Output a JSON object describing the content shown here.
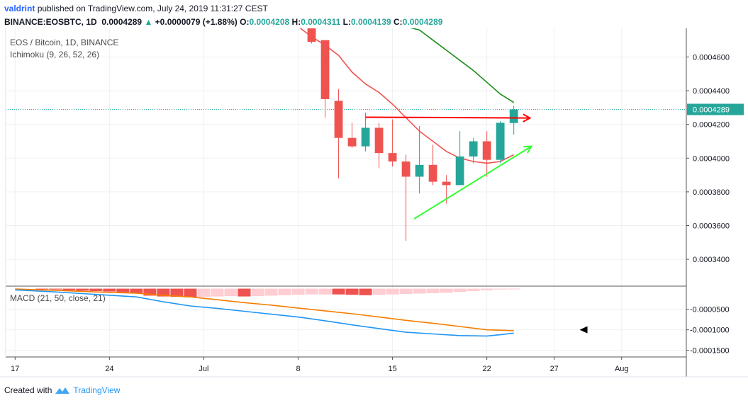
{
  "header": {
    "author": "valdrint",
    "published": "published on TradingView.com, July 24, 2019 11:31:27 CEST",
    "symbol": "BINANCE:EOSBTC, 1D",
    "last": "0.0004289",
    "change_arrow": "▲",
    "change": "+0.0000079 (+1.88%)",
    "o_label": "O:",
    "o": "0.0004208",
    "h_label": "H:",
    "h": "0.0004311",
    "l_label": "L:",
    "l": "0.0004139",
    "c_label": "C:",
    "c": "0.0004289"
  },
  "footer": {
    "created_with": "Created with",
    "brand": "TradingView",
    "logo_icon": "tradingview-logo-icon"
  },
  "chart_data": {
    "type": "candlestick",
    "legend": [
      "EOS / Bitcoin, 1D, BINANCE",
      "Ichimoku (9, 26, 52, 26)"
    ],
    "x_ticks": [
      "17",
      "24",
      "Jul",
      "8",
      "15",
      "22",
      "27",
      "Aug"
    ],
    "x_tick_days": [
      -14,
      -7,
      0,
      7,
      14,
      21,
      26,
      31
    ],
    "x_range_days": [
      -14.7,
      35.8
    ],
    "y_ticks": [
      "0.0003400",
      "0.0003600",
      "0.0003800",
      "0.0004000",
      "0.0004200",
      "0.0004400",
      "0.0004600"
    ],
    "y_tick_values": [
      0.00034,
      0.00036,
      0.00038,
      0.0004,
      0.00042,
      0.00044,
      0.00046
    ],
    "y_range": [
      0.0003245,
      0.000477
    ],
    "current_price": {
      "value": 0.0004289,
      "label": "0.0004289"
    },
    "up_color": "#26a69a",
    "down_color": "#ef5350",
    "candles": [
      {
        "day": 8,
        "o": 0.000478,
        "h": 0.000478,
        "l": 0.000468,
        "c": 0.000469
      },
      {
        "day": 9,
        "o": 0.00047,
        "h": 0.00047,
        "l": 0.000424,
        "c": 0.000435
      },
      {
        "day": 10,
        "o": 0.000434,
        "h": 0.000441,
        "l": 0.000388,
        "c": 0.000412
      },
      {
        "day": 11,
        "o": 0.000412,
        "h": 0.000421,
        "l": 0.000406,
        "c": 0.000407
      },
      {
        "day": 12,
        "o": 0.000407,
        "h": 0.000427,
        "l": 0.000404,
        "c": 0.000418
      },
      {
        "day": 13,
        "o": 0.000418,
        "h": 0.000421,
        "l": 0.000394,
        "c": 0.000403
      },
      {
        "day": 14,
        "o": 0.000403,
        "h": 0.000423,
        "l": 0.000395,
        "c": 0.000398
      },
      {
        "day": 15,
        "o": 0.000398,
        "h": 0.000402,
        "l": 0.000351,
        "c": 0.000389
      },
      {
        "day": 16,
        "o": 0.000389,
        "h": 0.000419,
        "l": 0.000379,
        "c": 0.000396
      },
      {
        "day": 17,
        "o": 0.000396,
        "h": 0.000408,
        "l": 0.000384,
        "c": 0.000386
      },
      {
        "day": 18,
        "o": 0.000386,
        "h": 0.00039,
        "l": 0.000373,
        "c": 0.000384
      },
      {
        "day": 19,
        "o": 0.000384,
        "h": 0.000416,
        "l": 0.000384,
        "c": 0.000401
      },
      {
        "day": 20,
        "o": 0.000401,
        "h": 0.000412,
        "l": 0.000397,
        "c": 0.00041
      },
      {
        "day": 21,
        "o": 0.00041,
        "h": 0.000416,
        "l": 0.000389,
        "c": 0.000399
      },
      {
        "day": 22,
        "o": 0.000399,
        "h": 0.000422,
        "l": 0.000397,
        "c": 0.000421
      },
      {
        "day": 23,
        "o": 0.0004208,
        "h": 0.0004311,
        "l": 0.0004139,
        "c": 0.0004289
      }
    ],
    "ichimoku_red": {
      "color": "#ef5350",
      "points": [
        [
          4,
          0.000485
        ],
        [
          5,
          0.000484
        ],
        [
          6,
          0.000479
        ],
        [
          7,
          0.000478
        ],
        [
          8,
          0.000472
        ],
        [
          9,
          0.000467
        ],
        [
          10,
          0.000461
        ],
        [
          11,
          0.000451
        ],
        [
          12,
          0.000444
        ],
        [
          13,
          0.000439
        ],
        [
          14,
          0.000432
        ],
        [
          15,
          0.000424
        ],
        [
          16,
          0.000416
        ],
        [
          17,
          0.00041
        ],
        [
          18,
          0.000404
        ],
        [
          19,
          0.0004
        ],
        [
          20,
          0.000398
        ],
        [
          21,
          0.000397
        ],
        [
          22,
          0.000398
        ],
        [
          23,
          0.000402
        ]
      ]
    },
    "ichimoku_green": {
      "color": "#1b8c1b",
      "points": [
        [
          12,
          0.000486
        ],
        [
          13,
          0.000484
        ],
        [
          14,
          0.000481
        ],
        [
          15,
          0.000478
        ],
        [
          16,
          0.000476
        ],
        [
          17,
          0.00047
        ],
        [
          18,
          0.000464
        ],
        [
          19,
          0.000458
        ],
        [
          20,
          0.000452
        ],
        [
          21,
          0.000445
        ],
        [
          22,
          0.000438
        ],
        [
          23,
          0.000433
        ]
      ]
    },
    "annotations": [
      {
        "type": "arrow",
        "color": "#ff0000",
        "from": [
          12,
          0.0004243
        ],
        "to": [
          24.2,
          0.0004238
        ]
      },
      {
        "type": "arrow",
        "color": "#33ff33",
        "from": [
          15.6,
          0.000364
        ],
        "to": [
          24.3,
          0.000407
        ]
      }
    ],
    "macd": {
      "legend": "MACD (21, 50, close, 21)",
      "y_ticks": [
        "-0.0000500",
        "-0.0001000",
        "-0.0001500"
      ],
      "y_tick_values": [
        -5e-05,
        -0.0001,
        -0.00015
      ],
      "y_range": [
        -0.000166,
        4.4e-06
      ],
      "hist_colors": {
        "falling": "#ef5350",
        "rising": "#ffcdd2"
      },
      "histogram": [
        {
          "day": -12,
          "v": -1e-06,
          "falling": true
        },
        {
          "day": -11,
          "v": -2e-06,
          "falling": true
        },
        {
          "day": -10,
          "v": -4e-06,
          "falling": true
        },
        {
          "day": -9,
          "v": -5e-06,
          "falling": true
        },
        {
          "day": -8,
          "v": -6e-06,
          "falling": true
        },
        {
          "day": -7,
          "v": -7e-06,
          "falling": true
        },
        {
          "day": -6,
          "v": -9e-06,
          "falling": true
        },
        {
          "day": -5,
          "v": -1.2e-05,
          "falling": true
        },
        {
          "day": -4,
          "v": -1.7e-05,
          "falling": true
        },
        {
          "day": -3,
          "v": -1.9e-05,
          "falling": true
        },
        {
          "day": -2,
          "v": -2e-05,
          "falling": true
        },
        {
          "day": -1,
          "v": -2.1e-05,
          "falling": true
        },
        {
          "day": 0,
          "v": -2e-05,
          "falling": false
        },
        {
          "day": 1,
          "v": -1.9e-05,
          "falling": false
        },
        {
          "day": 2,
          "v": -1.8e-05,
          "falling": false
        },
        {
          "day": 3,
          "v": -1.9e-05,
          "falling": true
        },
        {
          "day": 4,
          "v": -1.8e-05,
          "falling": false
        },
        {
          "day": 5,
          "v": -1.7e-05,
          "falling": false
        },
        {
          "day": 6,
          "v": -1.6e-05,
          "falling": false
        },
        {
          "day": 7,
          "v": -1.5e-05,
          "falling": false
        },
        {
          "day": 8,
          "v": -1.4e-05,
          "falling": false
        },
        {
          "day": 9,
          "v": -1.4e-05,
          "falling": false
        },
        {
          "day": 10,
          "v": -1.4e-05,
          "falling": true
        },
        {
          "day": 11,
          "v": -1.5e-05,
          "falling": true
        },
        {
          "day": 12,
          "v": -1.6e-05,
          "falling": true
        },
        {
          "day": 13,
          "v": -1.5e-05,
          "falling": false
        },
        {
          "day": 14,
          "v": -1.4e-05,
          "falling": false
        },
        {
          "day": 15,
          "v": -1.3e-05,
          "falling": false
        },
        {
          "day": 16,
          "v": -1.2e-05,
          "falling": false
        },
        {
          "day": 17,
          "v": -1.1e-05,
          "falling": false
        },
        {
          "day": 18,
          "v": -1e-05,
          "falling": false
        },
        {
          "day": 19,
          "v": -8e-06,
          "falling": false
        },
        {
          "day": 20,
          "v": -6e-06,
          "falling": false
        },
        {
          "day": 21,
          "v": -4e-06,
          "falling": false
        },
        {
          "day": 22,
          "v": -2e-06,
          "falling": false
        },
        {
          "day": 23,
          "v": -1e-06,
          "falling": false
        }
      ],
      "signal": {
        "color": "#f57c00",
        "points": [
          [
            -14,
            -1e-06
          ],
          [
            -11,
            -4e-06
          ],
          [
            -8,
            -8e-06
          ],
          [
            -5,
            -1.1e-05
          ],
          [
            -3,
            -1.6e-05
          ],
          [
            -1,
            -2e-05
          ],
          [
            1,
            -2.7e-05
          ],
          [
            3,
            -3.4e-05
          ],
          [
            5,
            -4e-05
          ],
          [
            7,
            -4.7e-05
          ],
          [
            9,
            -5.4e-05
          ],
          [
            11,
            -6.1e-05
          ],
          [
            13,
            -6.9e-05
          ],
          [
            15,
            -7.7e-05
          ],
          [
            17,
            -8.4e-05
          ],
          [
            19,
            -9.2e-05
          ],
          [
            21,
            -0.0001
          ],
          [
            22,
            -0.000101
          ],
          [
            23,
            -0.000102
          ]
        ]
      },
      "macd_line": {
        "color": "#2196f3",
        "points": [
          [
            -14,
            -3e-06
          ],
          [
            -11,
            -8e-06
          ],
          [
            -8,
            -1.4e-05
          ],
          [
            -5,
            -2e-05
          ],
          [
            -3,
            -3.2e-05
          ],
          [
            -1,
            -4.2e-05
          ],
          [
            1,
            -4.8e-05
          ],
          [
            3,
            -5.5e-05
          ],
          [
            5,
            -6.2e-05
          ],
          [
            7,
            -6.9e-05
          ],
          [
            9,
            -7.8e-05
          ],
          [
            11,
            -8.8e-05
          ],
          [
            13,
            -9.7e-05
          ],
          [
            15,
            -0.000106
          ],
          [
            17,
            -0.00011
          ],
          [
            19,
            -0.000114
          ],
          [
            21,
            -0.000115
          ],
          [
            22,
            -0.000112
          ],
          [
            23,
            -0.000108
          ]
        ]
      },
      "marker": {
        "type": "triangle-left",
        "day": 28.2,
        "v": -0.0001
      }
    }
  }
}
